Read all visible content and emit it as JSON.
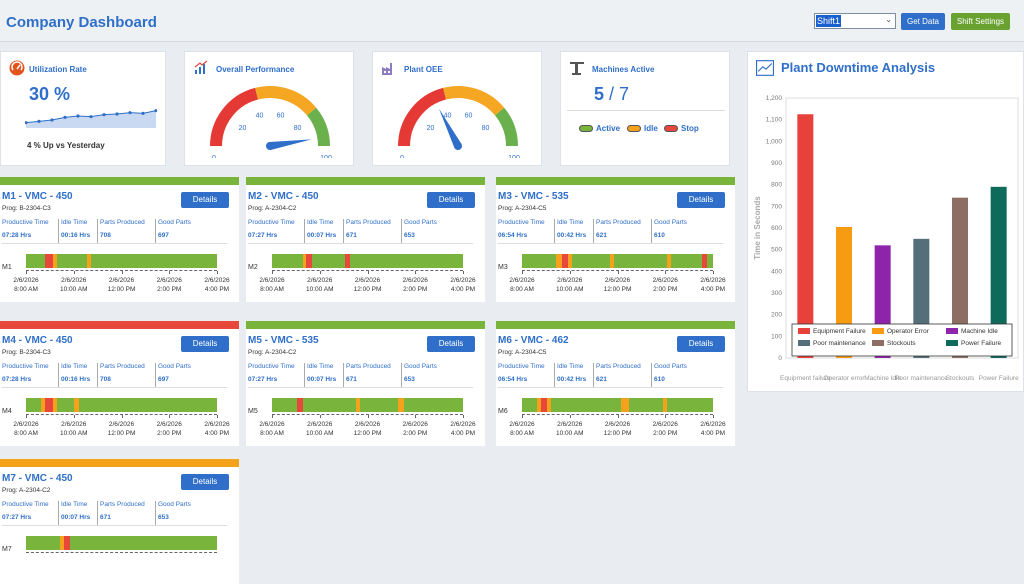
{
  "header": {
    "title": "Company Dashboard",
    "shift_value": "Shift1",
    "get_data_label": "Get Data",
    "shift_settings_label": "Shift Settings"
  },
  "kpis": {
    "utilization": {
      "label": "Utilization Rate",
      "value": "30 %",
      "trend": "4 % Up vs Yesterday",
      "sparkline": [
        0.18,
        0.2,
        0.22,
        0.26,
        0.28,
        0.27,
        0.3,
        0.31,
        0.33,
        0.32,
        0.36
      ]
    },
    "performance": {
      "label": "Overall Performance",
      "value": 0.95,
      "ticks": [
        "0",
        "20",
        "40",
        "60",
        "80",
        "100"
      ]
    },
    "oee": {
      "label": "Plant OEE",
      "value": 0.35,
      "ticks": [
        "0",
        "20",
        "40",
        "60",
        "80",
        "100"
      ]
    },
    "machines": {
      "label": "Machines Active",
      "active": "5",
      "total": "7",
      "legend": [
        "Active",
        "Idle",
        "Stop"
      ]
    }
  },
  "colors": {
    "active": "#79b43c",
    "idle": "#f4a21c",
    "stop": "#e8473c",
    "accent": "#2f6fc9"
  },
  "machines": [
    {
      "title": "M1 - VMC - 450",
      "prog": "Prog: B-2304-C3",
      "status": "active",
      "tag": "M1",
      "productive": "07:28 Hrs",
      "idle": "00:16 Hrs",
      "parts": "708",
      "good": "697",
      "segs": [
        [
          0.1,
          0.04,
          "stop"
        ],
        [
          0.14,
          0.02,
          "idle"
        ],
        [
          0.32,
          0.02,
          "idle"
        ]
      ]
    },
    {
      "title": "M2 - VMC - 450",
      "prog": "Prog: A-2304-C2",
      "status": "active",
      "tag": "M2",
      "productive": "07:27 Hrs",
      "idle": "00:07 Hrs",
      "parts": "671",
      "good": "653",
      "segs": [
        [
          0.16,
          0.02,
          "idle"
        ],
        [
          0.18,
          0.03,
          "stop"
        ],
        [
          0.38,
          0.03,
          "stop"
        ]
      ]
    },
    {
      "title": "M3 - VMC - 535",
      "prog": "Prog: A-2304-C5",
      "status": "active",
      "tag": "M3",
      "productive": "06:54 Hrs",
      "idle": "00:42 Hrs",
      "parts": "621",
      "good": "610",
      "segs": [
        [
          0.18,
          0.03,
          "idle"
        ],
        [
          0.21,
          0.03,
          "stop"
        ],
        [
          0.24,
          0.02,
          "idle"
        ],
        [
          0.46,
          0.02,
          "idle"
        ],
        [
          0.76,
          0.02,
          "idle"
        ],
        [
          0.94,
          0.03,
          "stop"
        ]
      ]
    },
    {
      "title": "M4 - VMC - 450",
      "prog": "Prog: B-2304-C3",
      "status": "stop",
      "tag": "M4",
      "productive": "07:28 Hrs",
      "idle": "00:16 Hrs",
      "parts": "708",
      "good": "697",
      "segs": [
        [
          0.08,
          0.02,
          "idle"
        ],
        [
          0.1,
          0.04,
          "stop"
        ],
        [
          0.14,
          0.02,
          "idle"
        ],
        [
          0.25,
          0.03,
          "idle"
        ]
      ]
    },
    {
      "title": "M5 - VMC - 535",
      "prog": "Prog: A-2304-C2",
      "status": "active",
      "tag": "M5",
      "productive": "07:27 Hrs",
      "idle": "00:07 Hrs",
      "parts": "671",
      "good": "653",
      "segs": [
        [
          0.13,
          0.03,
          "stop"
        ],
        [
          0.44,
          0.02,
          "idle"
        ],
        [
          0.66,
          0.03,
          "idle"
        ]
      ]
    },
    {
      "title": "M6 - VMC - 462",
      "prog": "Prog: A-2304-C5",
      "status": "active",
      "tag": "M6",
      "productive": "06:54 Hrs",
      "idle": "00:42 Hrs",
      "parts": "621",
      "good": "610",
      "segs": [
        [
          0.08,
          0.02,
          "idle"
        ],
        [
          0.1,
          0.03,
          "stop"
        ],
        [
          0.13,
          0.02,
          "idle"
        ],
        [
          0.52,
          0.04,
          "idle"
        ],
        [
          0.74,
          0.02,
          "idle"
        ]
      ]
    },
    {
      "title": "M7 - VMC - 450",
      "prog": "Prog: A-2304-C2",
      "status": "idle",
      "tag": "M7",
      "productive": "07:27 Hrs",
      "idle": "00:07 Hrs",
      "parts": "671",
      "good": "653",
      "segs": [
        [
          0.18,
          0.02,
          "idle"
        ],
        [
          0.2,
          0.03,
          "stop"
        ]
      ]
    }
  ],
  "stat_labels": {
    "productive": "Productive Time",
    "idle": "Idle Time",
    "parts": "Parts Produced",
    "good": "Good Parts"
  },
  "detail_label": "Details",
  "timeline_ticks": [
    {
      "d": "2/6/2026",
      "t": "8:00 AM"
    },
    {
      "d": "2/6/2026",
      "t": "10:00 AM"
    },
    {
      "d": "2/6/2026",
      "t": "12:00 PM"
    },
    {
      "d": "2/6/2026",
      "t": "2:00 PM"
    },
    {
      "d": "2/6/2026",
      "t": "4:00 PM"
    }
  ],
  "chart_data": {
    "type": "bar",
    "title": "Plant Downtime Analysis",
    "ylabel": "Time in Seconds",
    "ylim": [
      0,
      1200
    ],
    "yticks": [
      0,
      100,
      200,
      300,
      400,
      500,
      600,
      700,
      800,
      900,
      1000,
      1100,
      1200
    ],
    "ytick_labels": [
      "0",
      "100",
      "200",
      "300",
      "400",
      "500",
      "600",
      "700",
      "800",
      "900",
      "1,000",
      "1,100",
      "1,200"
    ],
    "categories": [
      "Equipment Failure",
      "Operator Error",
      "Machine Idle",
      "Poor maintenance",
      "Stockouts",
      "Power Failure"
    ],
    "xtick_labels": [
      "Equipment failure",
      "Operator error",
      "Machine Idle",
      "Poor maintenance",
      "Stockouts",
      "Power Failure"
    ],
    "values": [
      1125,
      605,
      520,
      550,
      740,
      790
    ],
    "colors": [
      "#e8403a",
      "#f79c12",
      "#8e24aa",
      "#546e7a",
      "#8d6e63",
      "#0e6b5c"
    ],
    "legend_position": "bottom-inside"
  }
}
